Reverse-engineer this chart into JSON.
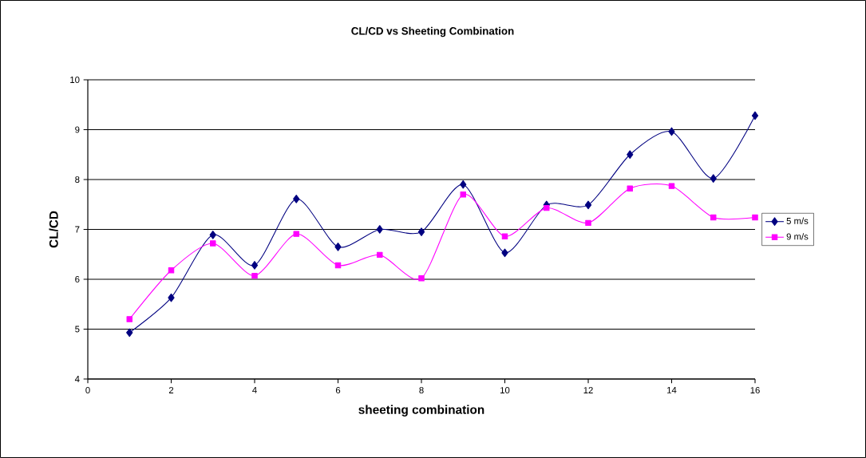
{
  "chart_data": {
    "type": "line",
    "title": "CL/CD vs Sheeting Combination",
    "xlabel": "sheeting combination",
    "ylabel": "CL/CD",
    "x": [
      1,
      2,
      3,
      4,
      5,
      6,
      7,
      8,
      9,
      10,
      11,
      12,
      13,
      14,
      15,
      16
    ],
    "series": [
      {
        "name": "5 m/s",
        "color": "#000080",
        "marker": "diamond",
        "values": [
          4.93,
          5.63,
          6.89,
          6.28,
          7.61,
          6.65,
          7.0,
          6.95,
          7.9,
          6.53,
          7.49,
          7.49,
          8.5,
          8.96,
          8.02,
          9.28
        ]
      },
      {
        "name": "9 m/s",
        "color": "#ff00ff",
        "marker": "square",
        "values": [
          5.2,
          6.18,
          6.72,
          6.07,
          6.91,
          6.28,
          6.49,
          6.02,
          7.7,
          6.86,
          7.43,
          7.13,
          7.82,
          7.87,
          7.24,
          7.24
        ]
      }
    ],
    "xlim": [
      0,
      16
    ],
    "ylim": [
      4,
      10
    ],
    "xticks": [
      0,
      2,
      4,
      6,
      8,
      10,
      12,
      14,
      16
    ],
    "yticks": [
      4,
      5,
      6,
      7,
      8,
      9,
      10
    ],
    "grid": "y",
    "legend": "right"
  }
}
